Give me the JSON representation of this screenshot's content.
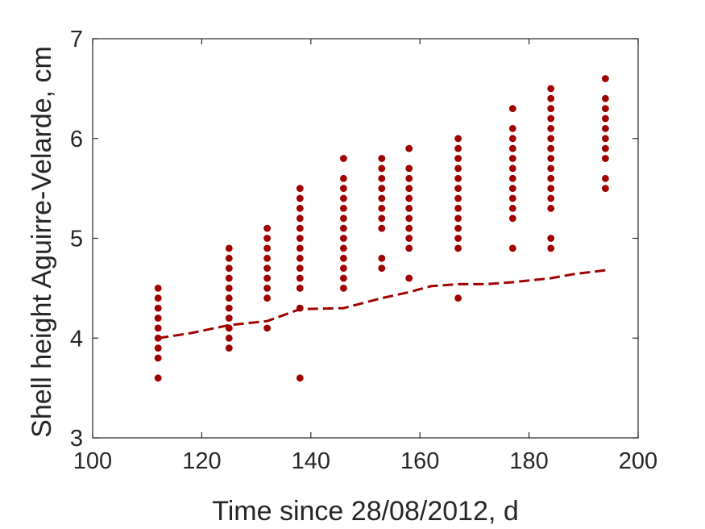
{
  "chart_data": {
    "type": "scatter",
    "title": "",
    "xlabel": "Time since 28/08/2012, d",
    "ylabel": "Shell height Aguirre-Velarde, cm",
    "xlim": [
      100,
      200
    ],
    "ylim": [
      3,
      7
    ],
    "xticks": [
      "100",
      "120",
      "140",
      "160",
      "180",
      "200"
    ],
    "yticks": [
      "3",
      "4",
      "5",
      "6",
      "7"
    ],
    "grid": false,
    "legend": "none",
    "colors": {
      "points": "#a00000",
      "line": "#a00000",
      "axes": "#262626"
    },
    "series": [
      {
        "type": "scatter",
        "points": [
          [
            112,
            3.6
          ],
          [
            112,
            3.8
          ],
          [
            112,
            3.9
          ],
          [
            112,
            4.0
          ],
          [
            112,
            4.1
          ],
          [
            112,
            4.2
          ],
          [
            112,
            4.3
          ],
          [
            112,
            4.4
          ],
          [
            112,
            4.5
          ],
          [
            125,
            3.9
          ],
          [
            125,
            4.0
          ],
          [
            125,
            4.1
          ],
          [
            125,
            4.2
          ],
          [
            125,
            4.3
          ],
          [
            125,
            4.4
          ],
          [
            125,
            4.5
          ],
          [
            125,
            4.6
          ],
          [
            125,
            4.7
          ],
          [
            125,
            4.8
          ],
          [
            125,
            4.9
          ],
          [
            132,
            4.1
          ],
          [
            132,
            4.4
          ],
          [
            132,
            4.5
          ],
          [
            132,
            4.6
          ],
          [
            132,
            4.7
          ],
          [
            132,
            4.8
          ],
          [
            132,
            4.9
          ],
          [
            132,
            5.0
          ],
          [
            132,
            5.1
          ],
          [
            138,
            3.6
          ],
          [
            138,
            4.3
          ],
          [
            138,
            4.5
          ],
          [
            138,
            4.6
          ],
          [
            138,
            4.7
          ],
          [
            138,
            4.8
          ],
          [
            138,
            4.9
          ],
          [
            138,
            5.0
          ],
          [
            138,
            5.1
          ],
          [
            138,
            5.2
          ],
          [
            138,
            5.3
          ],
          [
            138,
            5.4
          ],
          [
            138,
            5.5
          ],
          [
            146,
            4.5
          ],
          [
            146,
            4.6
          ],
          [
            146,
            4.7
          ],
          [
            146,
            4.8
          ],
          [
            146,
            4.9
          ],
          [
            146,
            5.0
          ],
          [
            146,
            5.1
          ],
          [
            146,
            5.2
          ],
          [
            146,
            5.3
          ],
          [
            146,
            5.4
          ],
          [
            146,
            5.5
          ],
          [
            146,
            5.6
          ],
          [
            146,
            5.8
          ],
          [
            153,
            4.7
          ],
          [
            153,
            4.8
          ],
          [
            153,
            5.1
          ],
          [
            153,
            5.2
          ],
          [
            153,
            5.3
          ],
          [
            153,
            5.4
          ],
          [
            153,
            5.5
          ],
          [
            153,
            5.6
          ],
          [
            153,
            5.7
          ],
          [
            153,
            5.8
          ],
          [
            158,
            4.6
          ],
          [
            158,
            4.9
          ],
          [
            158,
            5.0
          ],
          [
            158,
            5.1
          ],
          [
            158,
            5.2
          ],
          [
            158,
            5.3
          ],
          [
            158,
            5.4
          ],
          [
            158,
            5.5
          ],
          [
            158,
            5.6
          ],
          [
            158,
            5.7
          ],
          [
            158,
            5.9
          ],
          [
            167,
            4.4
          ],
          [
            167,
            4.9
          ],
          [
            167,
            5.0
          ],
          [
            167,
            5.1
          ],
          [
            167,
            5.2
          ],
          [
            167,
            5.3
          ],
          [
            167,
            5.4
          ],
          [
            167,
            5.5
          ],
          [
            167,
            5.6
          ],
          [
            167,
            5.7
          ],
          [
            167,
            5.8
          ],
          [
            167,
            5.9
          ],
          [
            167,
            6.0
          ],
          [
            177,
            4.9
          ],
          [
            177,
            5.2
          ],
          [
            177,
            5.3
          ],
          [
            177,
            5.4
          ],
          [
            177,
            5.5
          ],
          [
            177,
            5.6
          ],
          [
            177,
            5.7
          ],
          [
            177,
            5.8
          ],
          [
            177,
            5.9
          ],
          [
            177,
            6.0
          ],
          [
            177,
            6.1
          ],
          [
            177,
            6.3
          ],
          [
            184,
            4.9
          ],
          [
            184,
            5.0
          ],
          [
            184,
            5.3
          ],
          [
            184,
            5.4
          ],
          [
            184,
            5.5
          ],
          [
            184,
            5.6
          ],
          [
            184,
            5.7
          ],
          [
            184,
            5.8
          ],
          [
            184,
            5.9
          ],
          [
            184,
            6.0
          ],
          [
            184,
            6.1
          ],
          [
            184,
            6.2
          ],
          [
            184,
            6.3
          ],
          [
            184,
            6.4
          ],
          [
            184,
            6.5
          ],
          [
            194,
            5.5
          ],
          [
            194,
            5.6
          ],
          [
            194,
            5.8
          ],
          [
            194,
            5.9
          ],
          [
            194,
            6.0
          ],
          [
            194,
            6.1
          ],
          [
            194,
            6.2
          ],
          [
            194,
            6.3
          ],
          [
            194,
            6.4
          ],
          [
            194,
            6.6
          ]
        ]
      },
      {
        "type": "line",
        "style": "dashed",
        "points": [
          [
            112,
            4.0
          ],
          [
            118,
            4.05
          ],
          [
            125,
            4.13
          ],
          [
            132,
            4.17
          ],
          [
            138,
            4.29
          ],
          [
            146,
            4.3
          ],
          [
            153,
            4.4
          ],
          [
            158,
            4.46
          ],
          [
            162,
            4.52
          ],
          [
            167,
            4.54
          ],
          [
            172,
            4.54
          ],
          [
            177,
            4.56
          ],
          [
            184,
            4.6
          ],
          [
            188,
            4.64
          ],
          [
            194,
            4.68
          ]
        ]
      }
    ]
  }
}
